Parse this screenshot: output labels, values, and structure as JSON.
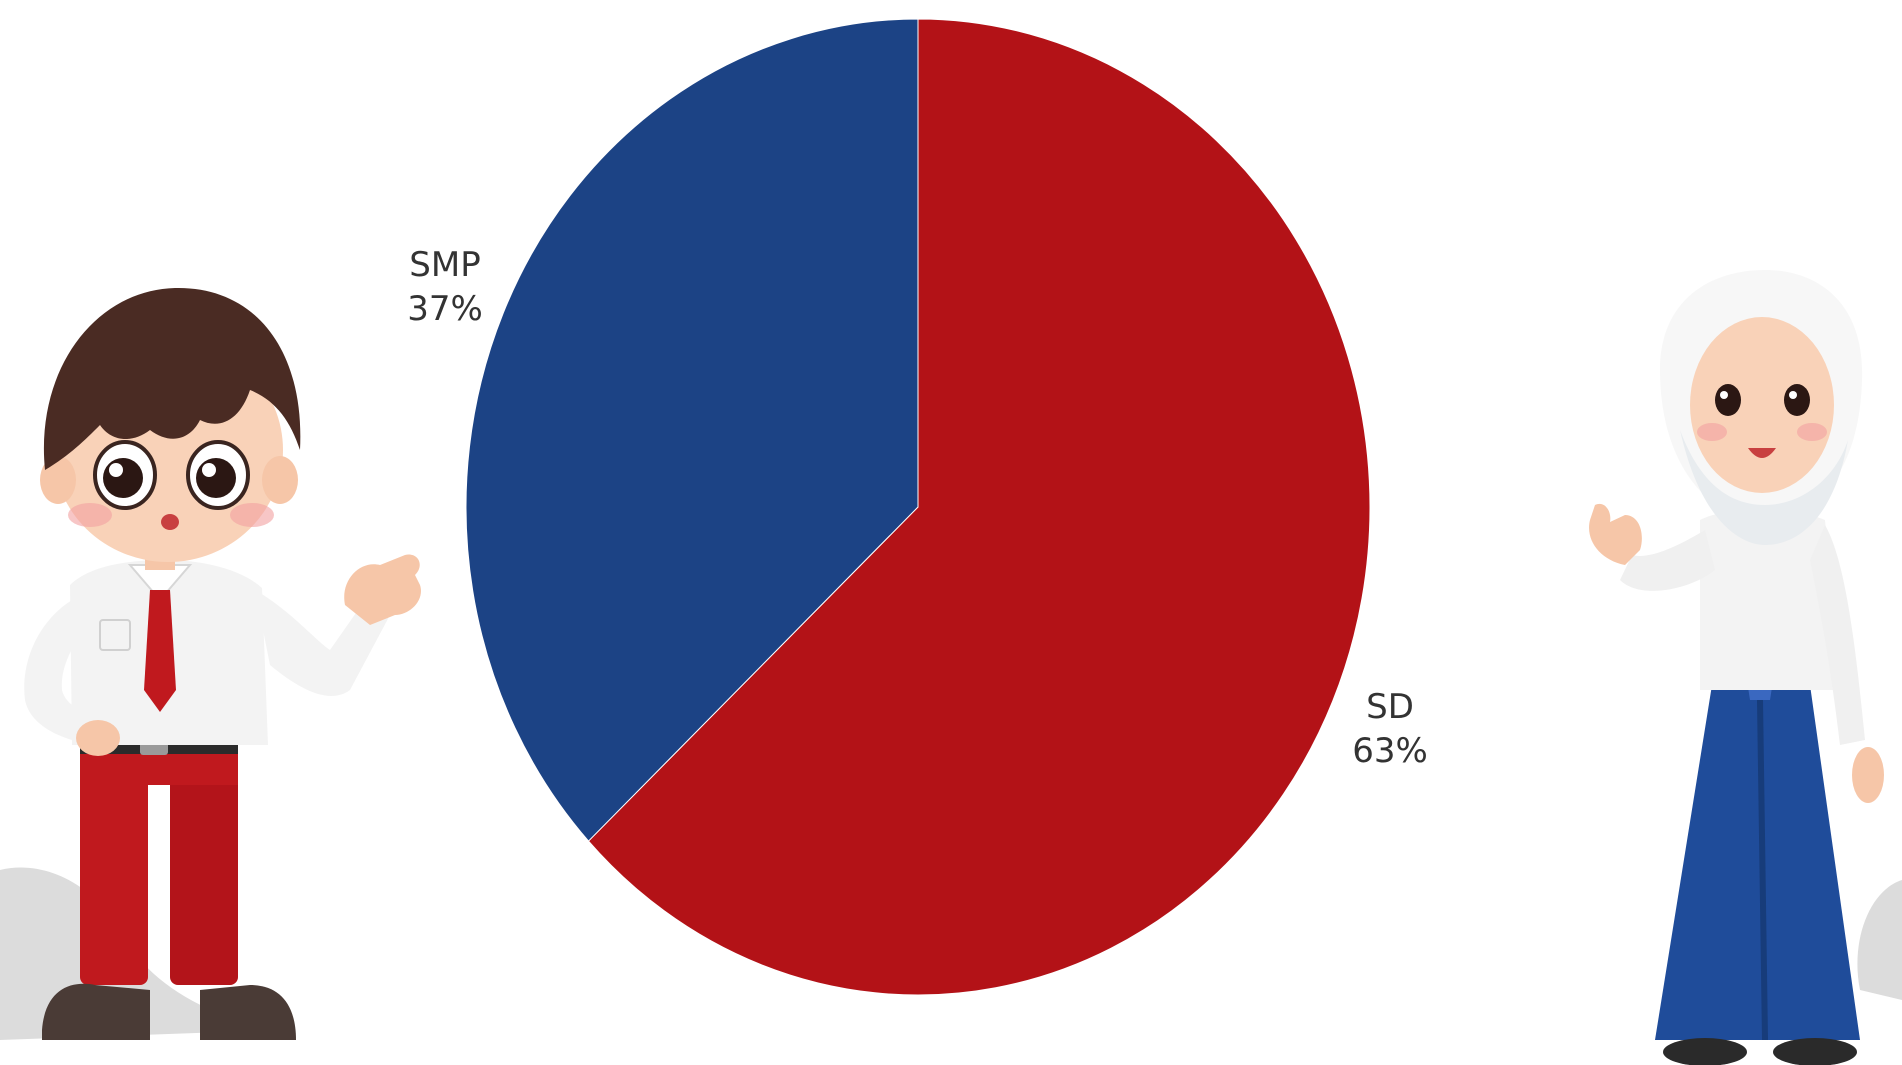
{
  "chart_data": {
    "type": "pie",
    "title": "",
    "start_angle_deg": 0,
    "direction": "clockwise",
    "slices": [
      {
        "label": "SD",
        "value": 63,
        "value_text": "63%",
        "color": "#B31217"
      },
      {
        "label": "SMP",
        "value": 37,
        "value_text": "37%",
        "color": "#1C4385"
      }
    ],
    "legend": "none",
    "data_labels": "outside"
  },
  "illustrations": {
    "left": {
      "icon": "boy-student-red-uniform-illustration"
    },
    "right": {
      "icon": "girl-student-hijab-blue-uniform-illustration"
    }
  }
}
